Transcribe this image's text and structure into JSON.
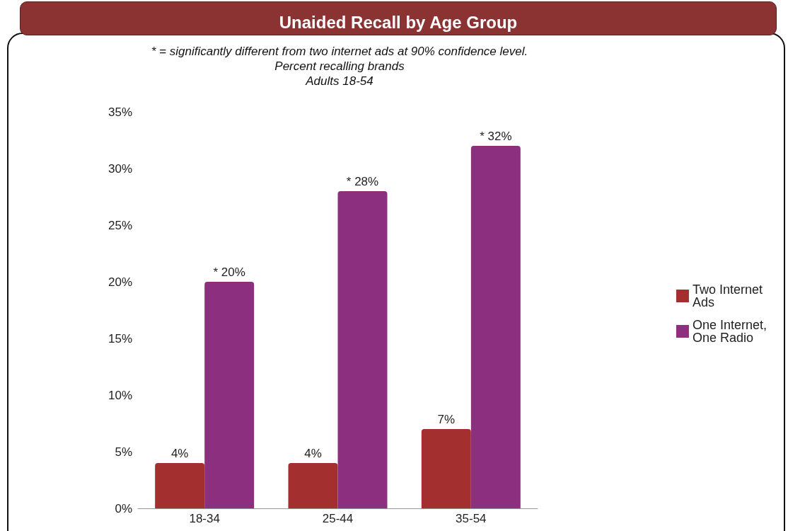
{
  "chart_data": {
    "type": "bar",
    "title": "Unaided Recall by Age Group",
    "subtitle": "* = significantly different from two internet ads at 90% confidence level.\nPercent recalling brands\nAdults 18-54",
    "categories": [
      "18-34",
      "25-44",
      "35-54"
    ],
    "series": [
      {
        "name": "Two Internet Ads",
        "color": "#a32f2f",
        "values": [
          4,
          4,
          7
        ],
        "value_labels": [
          "4%",
          "4%",
          "7%"
        ]
      },
      {
        "name": "One Internet, One Radio",
        "color": "#8c2f7e",
        "values": [
          20,
          28,
          32
        ],
        "value_labels": [
          "* 20%",
          "* 28%",
          "* 32%"
        ]
      }
    ],
    "ylim": [
      0,
      35
    ],
    "yticks": [
      {
        "value": 0,
        "label": "0%"
      },
      {
        "value": 5,
        "label": "5%"
      },
      {
        "value": 10,
        "label": "10%"
      },
      {
        "value": 15,
        "label": "15%"
      },
      {
        "value": 20,
        "label": "20%"
      },
      {
        "value": 25,
        "label": "25%"
      },
      {
        "value": 30,
        "label": "30%"
      },
      {
        "value": 35,
        "label": "35%"
      }
    ],
    "grid": false,
    "legend": "right"
  }
}
